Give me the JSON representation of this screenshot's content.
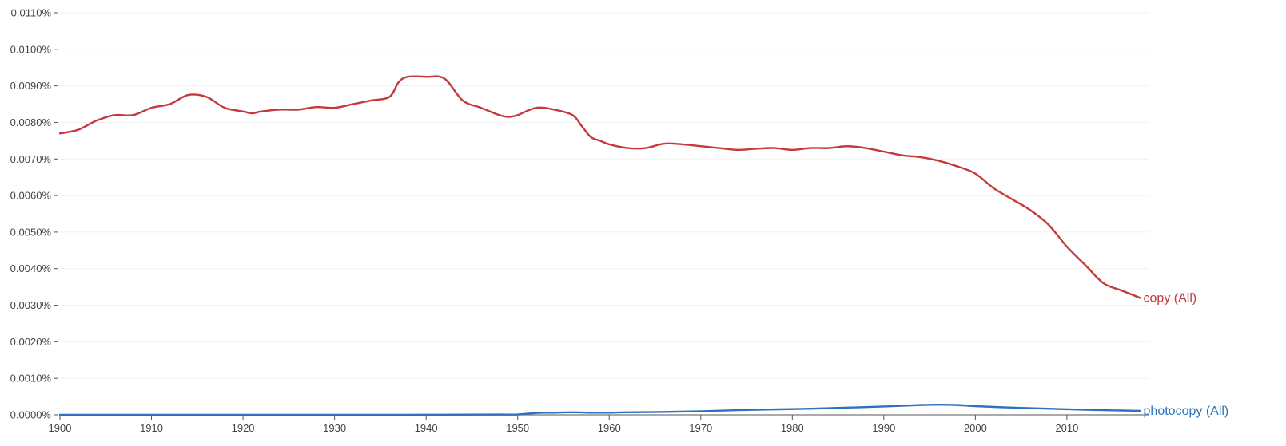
{
  "chart_data": {
    "type": "line",
    "title": "",
    "xlabel": "",
    "ylabel": "",
    "xlim": [
      1900,
      2019
    ],
    "ylim": [
      0,
      0.011
    ],
    "grid": true,
    "x_ticks": [
      "1900",
      "1910",
      "1920",
      "1930",
      "1940",
      "1950",
      "1960",
      "1970",
      "1980",
      "1990",
      "2000",
      "2010"
    ],
    "y_ticks": [
      "0.0000%",
      "0.0010%",
      "0.0020%",
      "0.0030%",
      "0.0040%",
      "0.0050%",
      "0.0060%",
      "0.0070%",
      "0.0080%",
      "0.0090%",
      "0.0100%",
      "0.0110%"
    ],
    "legend_placement": "right end of each line",
    "series": [
      {
        "name": "copy (All)",
        "color": "#c5393a",
        "points": [
          [
            1900,
            0.0077
          ],
          [
            1902,
            0.0078
          ],
          [
            1904,
            0.00805
          ],
          [
            1906,
            0.0082
          ],
          [
            1908,
            0.0082
          ],
          [
            1910,
            0.0084
          ],
          [
            1912,
            0.0085
          ],
          [
            1914,
            0.00875
          ],
          [
            1916,
            0.0087
          ],
          [
            1918,
            0.0084
          ],
          [
            1920,
            0.0083
          ],
          [
            1921,
            0.00825
          ],
          [
            1922,
            0.0083
          ],
          [
            1924,
            0.00835
          ],
          [
            1926,
            0.00835
          ],
          [
            1928,
            0.00842
          ],
          [
            1930,
            0.0084
          ],
          [
            1932,
            0.0085
          ],
          [
            1934,
            0.0086
          ],
          [
            1936,
            0.0087
          ],
          [
            1937,
            0.0091
          ],
          [
            1938,
            0.00925
          ],
          [
            1940,
            0.00925
          ],
          [
            1942,
            0.0092
          ],
          [
            1944,
            0.0086
          ],
          [
            1946,
            0.0084
          ],
          [
            1948,
            0.0082
          ],
          [
            1949,
            0.00815
          ],
          [
            1950,
            0.0082
          ],
          [
            1952,
            0.0084
          ],
          [
            1954,
            0.00835
          ],
          [
            1956,
            0.0082
          ],
          [
            1957,
            0.0079
          ],
          [
            1958,
            0.0076
          ],
          [
            1959,
            0.0075
          ],
          [
            1960,
            0.0074
          ],
          [
            1962,
            0.0073
          ],
          [
            1964,
            0.0073
          ],
          [
            1966,
            0.00742
          ],
          [
            1968,
            0.0074
          ],
          [
            1970,
            0.00735
          ],
          [
            1972,
            0.0073
          ],
          [
            1974,
            0.00725
          ],
          [
            1976,
            0.00728
          ],
          [
            1978,
            0.0073
          ],
          [
            1980,
            0.00725
          ],
          [
            1982,
            0.0073
          ],
          [
            1984,
            0.0073
          ],
          [
            1986,
            0.00735
          ],
          [
            1988,
            0.0073
          ],
          [
            1990,
            0.0072
          ],
          [
            1992,
            0.0071
          ],
          [
            1994,
            0.00705
          ],
          [
            1996,
            0.00695
          ],
          [
            1998,
            0.0068
          ],
          [
            2000,
            0.0066
          ],
          [
            2002,
            0.0062
          ],
          [
            2004,
            0.0059
          ],
          [
            2006,
            0.0056
          ],
          [
            2008,
            0.0052
          ],
          [
            2010,
            0.0046
          ],
          [
            2012,
            0.0041
          ],
          [
            2014,
            0.0036
          ],
          [
            2016,
            0.0034
          ],
          [
            2018,
            0.0032
          ]
        ]
      },
      {
        "name": "photocopy (All)",
        "color": "#2c72c0",
        "points": [
          [
            1900,
            0.0
          ],
          [
            1930,
            0.0
          ],
          [
            1940,
            3e-06
          ],
          [
            1948,
            8e-06
          ],
          [
            1950,
            1e-05
          ],
          [
            1952,
            5e-05
          ],
          [
            1954,
            6e-05
          ],
          [
            1956,
            7e-05
          ],
          [
            1958,
            6e-05
          ],
          [
            1960,
            6e-05
          ],
          [
            1962,
            7e-05
          ],
          [
            1966,
            8e-05
          ],
          [
            1970,
            0.0001
          ],
          [
            1974,
            0.00013
          ],
          [
            1978,
            0.00015
          ],
          [
            1982,
            0.00017
          ],
          [
            1986,
            0.0002
          ],
          [
            1990,
            0.00023
          ],
          [
            1994,
            0.00027
          ],
          [
            1996,
            0.00028
          ],
          [
            1998,
            0.00027
          ],
          [
            2000,
            0.00024
          ],
          [
            2004,
            0.0002
          ],
          [
            2008,
            0.00017
          ],
          [
            2012,
            0.00014
          ],
          [
            2016,
            0.00012
          ],
          [
            2018,
            0.00011
          ]
        ]
      }
    ]
  }
}
